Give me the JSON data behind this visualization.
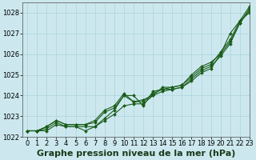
{
  "background_color": "#cce8ee",
  "grid_color": "#aad4da",
  "line_color": "#1a5c1a",
  "title": "Graphe pression niveau de la mer (hPa)",
  "ylim": [
    1022,
    1028.5
  ],
  "xlim": [
    -0.5,
    23
  ],
  "yticks": [
    1022,
    1023,
    1024,
    1025,
    1026,
    1027,
    1028
  ],
  "xticks": [
    0,
    1,
    2,
    3,
    4,
    5,
    6,
    7,
    8,
    9,
    10,
    11,
    12,
    13,
    14,
    15,
    16,
    17,
    18,
    19,
    20,
    21,
    22,
    23
  ],
  "series1": {
    "x": [
      0,
      1,
      2,
      3,
      4,
      5,
      6,
      7,
      8,
      9,
      10,
      11,
      12,
      13,
      14,
      15,
      16,
      17,
      18,
      19,
      20,
      21,
      22,
      23
    ],
    "y": [
      1022.3,
      1022.3,
      1022.3,
      1022.6,
      1022.5,
      1022.5,
      1022.5,
      1022.5,
      1022.8,
      1023.1,
      1023.5,
      1023.6,
      1023.6,
      1024.0,
      1024.2,
      1024.3,
      1024.4,
      1024.7,
      1025.1,
      1025.3,
      1026.0,
      1026.6,
      1027.5,
      1028.2
    ]
  },
  "series2": {
    "x": [
      0,
      1,
      2,
      3,
      4,
      5,
      6,
      7,
      8,
      9,
      10,
      11,
      12,
      13,
      14,
      15,
      16,
      17,
      18,
      19,
      20,
      21,
      22,
      23
    ],
    "y": [
      1022.3,
      1022.3,
      1022.5,
      1022.8,
      1022.6,
      1022.6,
      1022.6,
      1022.8,
      1023.3,
      1023.5,
      1024.1,
      1023.7,
      1023.7,
      1024.1,
      1024.3,
      1024.4,
      1024.5,
      1024.9,
      1025.3,
      1025.5,
      1026.1,
      1026.7,
      1027.6,
      1028.3
    ]
  },
  "series3": {
    "x": [
      0,
      1,
      2,
      3,
      4,
      5,
      6,
      7,
      8,
      9,
      10,
      11,
      12,
      13,
      14,
      15,
      16,
      17,
      18,
      19,
      20,
      21,
      22,
      23
    ],
    "y": [
      1022.3,
      1022.3,
      1022.5,
      1022.8,
      1022.6,
      1022.6,
      1022.6,
      1022.7,
      1023.2,
      1023.4,
      1024.0,
      1023.7,
      1023.8,
      1024.0,
      1024.4,
      1024.4,
      1024.5,
      1025.0,
      1025.4,
      1025.6,
      1026.0,
      1027.0,
      1027.6,
      1028.0
    ]
  },
  "series4": {
    "x": [
      0,
      1,
      2,
      3,
      4,
      5,
      6,
      7,
      8,
      9,
      10,
      11,
      12,
      13,
      14,
      15,
      16,
      17,
      18,
      19,
      20,
      21,
      22,
      23
    ],
    "y": [
      1022.3,
      1022.3,
      1022.4,
      1022.7,
      1022.5,
      1022.5,
      1022.3,
      1022.5,
      1022.9,
      1023.3,
      1024.0,
      1024.0,
      1023.5,
      1024.2,
      1024.3,
      1024.3,
      1024.4,
      1024.8,
      1025.2,
      1025.4,
      1025.9,
      1026.5,
      1027.5,
      1028.1
    ]
  },
  "title_fontsize": 8,
  "tick_fontsize": 6
}
